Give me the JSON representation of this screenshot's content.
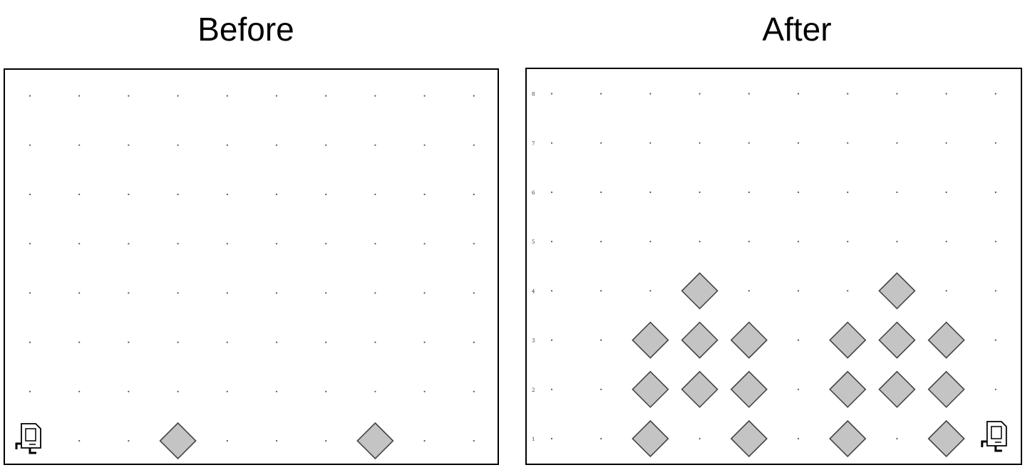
{
  "panels": {
    "before": {
      "title": "Before",
      "row_labels": [],
      "beepers": [
        [
          4,
          1
        ],
        [
          8,
          1
        ]
      ],
      "robot": [
        1,
        1
      ]
    },
    "after": {
      "title": "After",
      "row_labels": [
        "1",
        "2",
        "3",
        "4",
        "5",
        "6",
        "7",
        "8"
      ],
      "beepers": [
        [
          3,
          1
        ],
        [
          5,
          1
        ],
        [
          7,
          1
        ],
        [
          9,
          1
        ],
        [
          3,
          2
        ],
        [
          4,
          2
        ],
        [
          5,
          2
        ],
        [
          7,
          2
        ],
        [
          8,
          2
        ],
        [
          9,
          2
        ],
        [
          3,
          3
        ],
        [
          4,
          3
        ],
        [
          5,
          3
        ],
        [
          7,
          3
        ],
        [
          8,
          3
        ],
        [
          9,
          3
        ],
        [
          4,
          4
        ],
        [
          8,
          4
        ]
      ],
      "robot": [
        10,
        1
      ]
    }
  },
  "grid": {
    "cols": 10,
    "rows": 8
  },
  "colors": {
    "beeper_fill": "#c4c4c4",
    "beeper_stroke": "#444444",
    "dot": "#555555",
    "robot": "#000000"
  },
  "icons": {
    "beeper": "diamond-beeper-icon",
    "robot": "karel-robot-icon"
  }
}
